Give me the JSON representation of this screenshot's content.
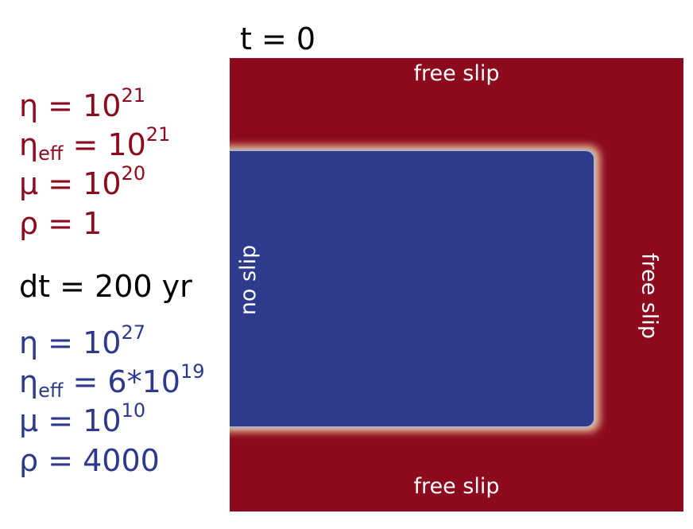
{
  "time_label": "t = 0",
  "upper_material": {
    "color": "#8b0a1e",
    "lines": [
      {
        "symbol": "η",
        "sub": "",
        "rhs": "10",
        "exp": "21"
      },
      {
        "symbol": "η",
        "sub": "eff",
        "rhs": "10",
        "exp": "21"
      },
      {
        "symbol": "μ",
        "sub": "",
        "rhs": "10",
        "exp": "20"
      },
      {
        "symbol": "ρ",
        "sub": "",
        "rhs": "1",
        "exp": ""
      }
    ]
  },
  "timestep_label": "dt = 200 yr",
  "lower_material": {
    "color": "#2d3a8c",
    "lines": [
      {
        "symbol": "η",
        "sub": "",
        "rhs": "10",
        "exp": "27"
      },
      {
        "symbol": "η",
        "sub": "eff",
        "rhs": "6*10",
        "exp": "19"
      },
      {
        "symbol": "μ",
        "sub": "",
        "rhs": "10",
        "exp": "10"
      },
      {
        "symbol": "ρ",
        "sub": "",
        "rhs": "4000",
        "exp": ""
      }
    ]
  },
  "boundary_conditions": {
    "top": "free slip",
    "bottom": "free slip",
    "left": "no slip",
    "right": "free slip"
  },
  "colors": {
    "matrix": "#8b0a1e",
    "block": "#2e3b8d",
    "transition": "#f0b98d"
  }
}
